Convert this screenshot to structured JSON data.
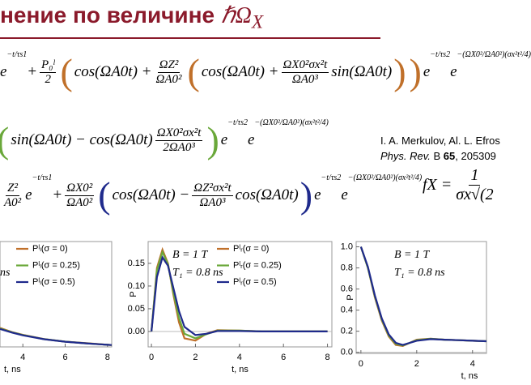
{
  "header": {
    "title": "нение по величине ",
    "symbol": "ℏΩ",
    "subscript": "X",
    "color": "#8b1a2b"
  },
  "equations": [
    {
      "paren_color": "#c0702a",
      "pieces": [
        "e",
        {
          "sup": "−t/τs1"
        },
        " + ",
        {
          "num": "P₀ˡ",
          "den": "2"
        },
        "(",
        "cos(ΩA0t) + ",
        {
          "num": "ΩZ²",
          "den": "ΩA0²"
        },
        "(",
        "cos(ΩA0t) + ",
        {
          "num": "ΩX0²σx²t",
          "den": "ΩA0³"
        },
        " sin(ΩA0t)",
        ")",
        ")",
        " e",
        {
          "sup": "−t/τs2"
        },
        "e",
        {
          "sup": "−(ΩX0²/ΩA0²)(σx²t²/4)"
        }
      ]
    },
    {
      "paren_color": "#6aa83a",
      "pieces": [
        "(",
        "sin(ΩA0t) − cos(ΩA0t)",
        {
          "num": "ΩX0²σx²t",
          "den": "2ΩA0³"
        },
        ")",
        " e",
        {
          "sup": "−t/τs2"
        },
        "e",
        {
          "sup": "−(ΩX0²/ΩA0²)(σx²t²/4)"
        }
      ]
    },
    {
      "paren_color": "#1f2a8c",
      "pieces": [
        {
          "num": "Z²",
          "den": "A0²"
        },
        "e",
        {
          "sup": "−t/τs1"
        },
        " + ",
        {
          "num": "ΩX0²",
          "den": "ΩA0²"
        },
        "(",
        "cos(ΩA0t) − ",
        {
          "num": "ΩZ²σx²t",
          "den": "ΩA0³"
        },
        "cos(ΩA0t)",
        ")",
        " e",
        {
          "sup": "−t/τs2"
        },
        "e",
        {
          "sup": "−(ΩX0²/ΩA0²)(σx²t²/4)"
        }
      ]
    }
  ],
  "reference": {
    "authors": "I. A. Merkulov, Al. L. Efros",
    "journal": "Phys. Rev.",
    "series": " B ",
    "volume": "65",
    "pages": ", 205309"
  },
  "formula": {
    "lhs": "fX = ",
    "num": "1",
    "den": "σx√(2"
  },
  "chart_data": [
    {
      "type": "line",
      "xlabel": "t, ns",
      "annotations": [
        "ns"
      ],
      "xlim": [
        2.92,
        8.2
      ],
      "ylim": [
        0,
        1
      ],
      "xticks": [
        4,
        6,
        8
      ],
      "yticks": [],
      "series": [
        {
          "name": "Pˡₗ(σ = 0)",
          "color": "#c0702a",
          "x": [
            2.92,
            3.5,
            4,
            5,
            6,
            7,
            8,
            8.2
          ],
          "values": [
            0.18,
            0.14,
            0.115,
            0.075,
            0.05,
            0.035,
            0.02,
            0.018
          ]
        },
        {
          "name": "Pˡₗ(σ = 0.25)",
          "color": "#6aa83a",
          "x": [
            2.92,
            3.5,
            4,
            5,
            6,
            7,
            8,
            8.2
          ],
          "values": [
            0.175,
            0.138,
            0.113,
            0.074,
            0.05,
            0.034,
            0.02,
            0.018
          ]
        },
        {
          "name": "Pˡₗ(σ = 0.5)",
          "color": "#1f2a8c",
          "x": [
            2.92,
            3.5,
            4,
            5,
            6,
            7,
            8,
            8.2
          ],
          "values": [
            0.17,
            0.135,
            0.11,
            0.073,
            0.049,
            0.034,
            0.02,
            0.018
          ]
        }
      ]
    },
    {
      "type": "line",
      "xlabel": "t, ns",
      "ylabel": "P",
      "annotations": [
        "B = 1 T",
        "T₁ = 0.8 ns"
      ],
      "xlim": [
        -0.15,
        8.2
      ],
      "ylim": [
        -0.034,
        0.198
      ],
      "xticks": [
        0,
        2,
        4,
        6,
        8
      ],
      "yticks": [
        {
          "value": 0,
          "label": "0.00"
        },
        0.05,
        {
          "value": 0.1,
          "label": "0.10"
        },
        0.15
      ],
      "series": [
        {
          "name": "Pˡᵣ(σ = 0)",
          "color": "#c0702a",
          "x": [
            0,
            0.25,
            0.5,
            0.75,
            1,
            1.25,
            1.5,
            2,
            2.5,
            3,
            4,
            5,
            6,
            7,
            8
          ],
          "values": [
            0,
            0.14,
            0.18,
            0.15,
            0.08,
            0.02,
            -0.015,
            -0.02,
            -0.005,
            0.003,
            0.002,
            0,
            0,
            0,
            0
          ]
        },
        {
          "name": "Pˡᵣ(σ = 0.25)",
          "color": "#6aa83a",
          "x": [
            0,
            0.25,
            0.5,
            0.75,
            1,
            1.25,
            1.5,
            2,
            2.5,
            3,
            4,
            5,
            6,
            7,
            8
          ],
          "values": [
            0,
            0.135,
            0.175,
            0.148,
            0.085,
            0.03,
            -0.005,
            -0.015,
            -0.006,
            0.002,
            0.002,
            0,
            0,
            0,
            0
          ]
        },
        {
          "name": "Pˡᵣ(σ = 0.5)",
          "color": "#1f2a8c",
          "x": [
            0,
            0.25,
            0.5,
            0.75,
            1,
            1.25,
            1.5,
            2,
            2.5,
            3,
            4,
            5,
            6,
            7,
            8
          ],
          "values": [
            0,
            0.12,
            0.163,
            0.145,
            0.095,
            0.045,
            0.01,
            -0.008,
            -0.005,
            0.001,
            0.001,
            0,
            0,
            0,
            0
          ]
        }
      ]
    },
    {
      "type": "line",
      "xlabel": "t, ns",
      "ylabel": "P",
      "annotations": [
        "B = 1 T",
        "T₁ = 0.8 ns"
      ],
      "xlim": [
        -0.17,
        4.5
      ],
      "ylim": [
        -0.01,
        1.05
      ],
      "xticks": [
        0,
        2,
        4
      ],
      "yticks": [
        {
          "value": 0,
          "label": "0.0"
        },
        0.2,
        0.4,
        0.6,
        0.8,
        {
          "value": 1,
          "label": "1.0"
        }
      ],
      "series": [
        {
          "color": "#c0702a",
          "x": [
            0,
            0.25,
            0.5,
            0.75,
            1,
            1.25,
            1.5,
            1.75,
            2,
            2.5,
            3,
            3.5,
            4,
            4.5
          ],
          "values": [
            1,
            0.8,
            0.52,
            0.3,
            0.15,
            0.07,
            0.06,
            0.09,
            0.12,
            0.13,
            0.12,
            0.115,
            0.11,
            0.105
          ]
        },
        {
          "color": "#6aa83a",
          "x": [
            0,
            0.25,
            0.5,
            0.75,
            1,
            1.25,
            1.5,
            1.75,
            2,
            2.5,
            3,
            3.5,
            4,
            4.5
          ],
          "values": [
            1,
            0.8,
            0.53,
            0.31,
            0.16,
            0.08,
            0.065,
            0.09,
            0.115,
            0.128,
            0.12,
            0.115,
            0.11,
            0.105
          ]
        },
        {
          "color": "#1f2a8c",
          "x": [
            0,
            0.25,
            0.5,
            0.75,
            1,
            1.25,
            1.5,
            1.75,
            2,
            2.5,
            3,
            3.5,
            4,
            4.5
          ],
          "values": [
            1,
            0.81,
            0.54,
            0.32,
            0.17,
            0.09,
            0.07,
            0.09,
            0.11,
            0.125,
            0.12,
            0.115,
            0.11,
            0.105
          ]
        }
      ]
    }
  ]
}
